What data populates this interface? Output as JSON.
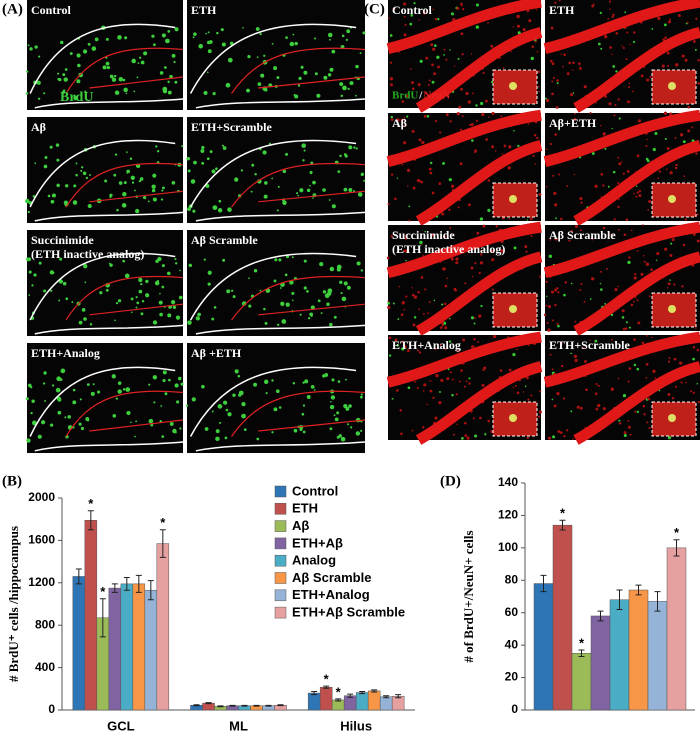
{
  "micrographs_a": {
    "panel_label": "(A)",
    "stain": "BrdU",
    "images": [
      [
        "Control"
      ],
      [
        "ETH"
      ],
      [
        "Aβ"
      ],
      [
        "ETH+Scramble"
      ],
      [
        "Succinimide",
        "(ETH inactive analog)"
      ],
      [
        "Aβ Scramble"
      ],
      [
        "ETH+Analog"
      ],
      [
        "Aβ +ETH"
      ]
    ]
  },
  "micrographs_c": {
    "panel_label": "(C)",
    "stain": [
      "BrdU",
      "/",
      "NeuN"
    ],
    "images": [
      [
        "Control"
      ],
      [
        "ETH"
      ],
      [
        "Aβ"
      ],
      [
        "Aβ+ETH"
      ],
      [
        "Succinimide",
        "(ETH inactive analog)"
      ],
      [
        "Aβ Scramble"
      ],
      [
        "ETH+Analog"
      ],
      [
        "ETH+Scramble"
      ]
    ]
  },
  "chart_data": [
    {
      "type": "bar",
      "panel_label": "(B)",
      "y_label": "# BrdU⁺ cells /hippocampus",
      "categories": [
        "GCL",
        "ML",
        "Hilus"
      ],
      "ylim": [
        0,
        2000
      ],
      "yticks": [
        0,
        400,
        800,
        1200,
        1600,
        2000
      ],
      "legend": "top-right",
      "series": [
        {
          "name": "Control",
          "color": "#2e75b6",
          "values": [
            1260,
            45,
            160
          ],
          "errors": [
            70,
            5,
            15
          ],
          "markers": [
            null,
            null,
            null
          ]
        },
        {
          "name": "ETH",
          "color": "#c0504d",
          "values": [
            1790,
            65,
            215
          ],
          "errors": [
            90,
            5,
            10
          ],
          "markers": [
            "*",
            null,
            "*"
          ]
        },
        {
          "name": "Aβ",
          "color": "#9bbb59",
          "values": [
            870,
            35,
            95
          ],
          "errors": [
            180,
            4,
            10
          ],
          "markers": [
            "*",
            null,
            "*"
          ]
        },
        {
          "name": "ETH+Aβ",
          "color": "#8064a2",
          "values": [
            1150,
            40,
            135
          ],
          "errors": [
            40,
            4,
            15
          ],
          "markers": [
            null,
            null,
            null
          ]
        },
        {
          "name": "Analog",
          "color": "#4bacc6",
          "values": [
            1190,
            40,
            165
          ],
          "errors": [
            60,
            4,
            10
          ],
          "markers": [
            null,
            null,
            null
          ]
        },
        {
          "name": "Aβ Scramble",
          "color": "#f79646",
          "values": [
            1190,
            40,
            180
          ],
          "errors": [
            80,
            4,
            10
          ],
          "markers": [
            null,
            null,
            null
          ]
        },
        {
          "name": "ETH+Analog",
          "color": "#95b3d7",
          "values": [
            1130,
            40,
            125
          ],
          "errors": [
            90,
            4,
            10
          ],
          "markers": [
            null,
            null,
            null
          ]
        },
        {
          "name": "ETH+Aβ Scramble",
          "color": "#e6a0a0",
          "values": [
            1570,
            45,
            130
          ],
          "errors": [
            130,
            4,
            15
          ],
          "markers": [
            "*",
            null,
            null
          ]
        }
      ]
    },
    {
      "type": "bar",
      "panel_label": "(D)",
      "y_label": "# of BrdU+/NeuN+ cells",
      "categories": [
        null
      ],
      "ylim": [
        0,
        140
      ],
      "yticks": [
        0,
        20,
        40,
        60,
        80,
        100,
        120,
        140
      ],
      "series": [
        {
          "color": "#2e75b6",
          "values": [
            78
          ],
          "errors": [
            5
          ],
          "markers": [
            null
          ]
        },
        {
          "color": "#c0504d",
          "values": [
            114
          ],
          "errors": [
            3
          ],
          "markers": [
            "*"
          ]
        },
        {
          "color": "#9bbb59",
          "values": [
            35
          ],
          "errors": [
            2
          ],
          "markers": [
            "*"
          ]
        },
        {
          "color": "#8064a2",
          "values": [
            58
          ],
          "errors": [
            3
          ],
          "markers": [
            null
          ]
        },
        {
          "color": "#4bacc6",
          "values": [
            68
          ],
          "errors": [
            6
          ],
          "markers": [
            null
          ]
        },
        {
          "color": "#f79646",
          "values": [
            74
          ],
          "errors": [
            3
          ],
          "markers": [
            null
          ]
        },
        {
          "color": "#95b3d7",
          "values": [
            67
          ],
          "errors": [
            6
          ],
          "markers": [
            null
          ]
        },
        {
          "color": "#e6a0a0",
          "values": [
            100
          ],
          "errors": [
            5
          ],
          "markers": [
            "*"
          ]
        }
      ]
    }
  ]
}
